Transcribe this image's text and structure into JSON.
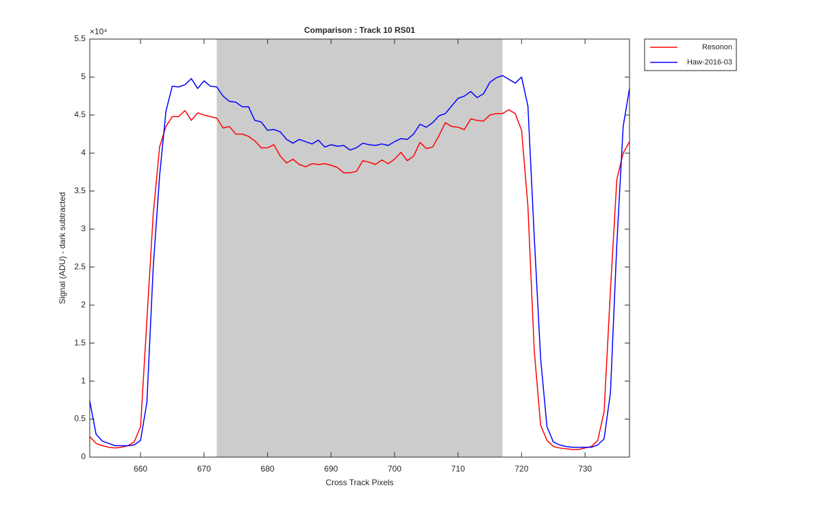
{
  "chart_data": {
    "type": "line",
    "title": "Comparison : Track 10  RS01",
    "x_label": "Cross Track Pixels",
    "y_label": "Signal (ADU) - dark subtracted",
    "y_exponent": "×10⁴",
    "x": [
      652,
      653,
      654,
      655,
      656,
      657,
      658,
      659,
      660,
      661,
      662,
      663,
      664,
      665,
      666,
      667,
      668,
      669,
      670,
      671,
      672,
      673,
      674,
      675,
      676,
      677,
      678,
      679,
      680,
      681,
      682,
      683,
      684,
      685,
      686,
      687,
      688,
      689,
      690,
      691,
      692,
      693,
      694,
      695,
      696,
      697,
      698,
      699,
      700,
      701,
      702,
      703,
      704,
      705,
      706,
      707,
      708,
      709,
      710,
      711,
      712,
      713,
      714,
      715,
      716,
      717,
      718,
      719,
      720,
      721,
      722,
      723,
      724,
      725,
      726,
      727,
      728,
      729,
      730,
      731,
      732,
      733,
      734,
      735,
      736,
      737
    ],
    "series": [
      {
        "name": "Resonon",
        "color": "#ff0000",
        "values": [
          0.27,
          0.18,
          0.15,
          0.13,
          0.12,
          0.13,
          0.15,
          0.2,
          0.4,
          1.8,
          3.2,
          4.08,
          4.35,
          4.48,
          4.48,
          4.56,
          4.43,
          4.53,
          4.5,
          4.48,
          4.46,
          4.33,
          4.35,
          4.25,
          4.25,
          4.22,
          4.16,
          4.07,
          4.07,
          4.11,
          3.96,
          3.87,
          3.92,
          3.85,
          3.82,
          3.86,
          3.85,
          3.86,
          3.84,
          3.81,
          3.74,
          3.74,
          3.76,
          3.9,
          3.88,
          3.85,
          3.91,
          3.86,
          3.92,
          4.01,
          3.9,
          3.96,
          4.14,
          4.06,
          4.08,
          4.23,
          4.4,
          4.35,
          4.34,
          4.31,
          4.45,
          4.43,
          4.42,
          4.5,
          4.52,
          4.52,
          4.57,
          4.52,
          4.3,
          3.3,
          1.4,
          0.42,
          0.22,
          0.14,
          0.12,
          0.11,
          0.1,
          0.1,
          0.12,
          0.14,
          0.22,
          0.6,
          2.2,
          3.65,
          4.0,
          4.15
        ]
      },
      {
        "name": "Haw-2016-03",
        "color": "#0000ff",
        "values": [
          0.74,
          0.3,
          0.21,
          0.18,
          0.15,
          0.15,
          0.15,
          0.16,
          0.22,
          0.72,
          2.5,
          3.7,
          4.55,
          4.88,
          4.87,
          4.9,
          4.98,
          4.85,
          4.95,
          4.88,
          4.87,
          4.75,
          4.68,
          4.67,
          4.61,
          4.61,
          4.43,
          4.41,
          4.3,
          4.31,
          4.28,
          4.18,
          4.13,
          4.18,
          4.15,
          4.12,
          4.17,
          4.08,
          4.11,
          4.09,
          4.1,
          4.04,
          4.07,
          4.13,
          4.11,
          4.1,
          4.12,
          4.1,
          4.15,
          4.19,
          4.18,
          4.25,
          4.38,
          4.34,
          4.4,
          4.49,
          4.52,
          4.62,
          4.72,
          4.75,
          4.81,
          4.73,
          4.78,
          4.93,
          4.99,
          5.02,
          4.97,
          4.92,
          5.0,
          4.62,
          2.9,
          1.3,
          0.4,
          0.2,
          0.16,
          0.14,
          0.13,
          0.13,
          0.13,
          0.13,
          0.16,
          0.24,
          0.85,
          2.8,
          4.35,
          4.85
        ]
      }
    ],
    "shaded_region": [
      672,
      717
    ],
    "shaded_color": "#cccccc",
    "xlim": [
      652,
      737
    ],
    "ylim": [
      0,
      5.5
    ],
    "xticks": [
      660,
      670,
      680,
      690,
      700,
      710,
      720,
      730
    ],
    "yticks": [
      0,
      0.5,
      1,
      1.5,
      2,
      2.5,
      3,
      3.5,
      4,
      4.5,
      5,
      5.5
    ],
    "legend": "outside-top-right"
  }
}
